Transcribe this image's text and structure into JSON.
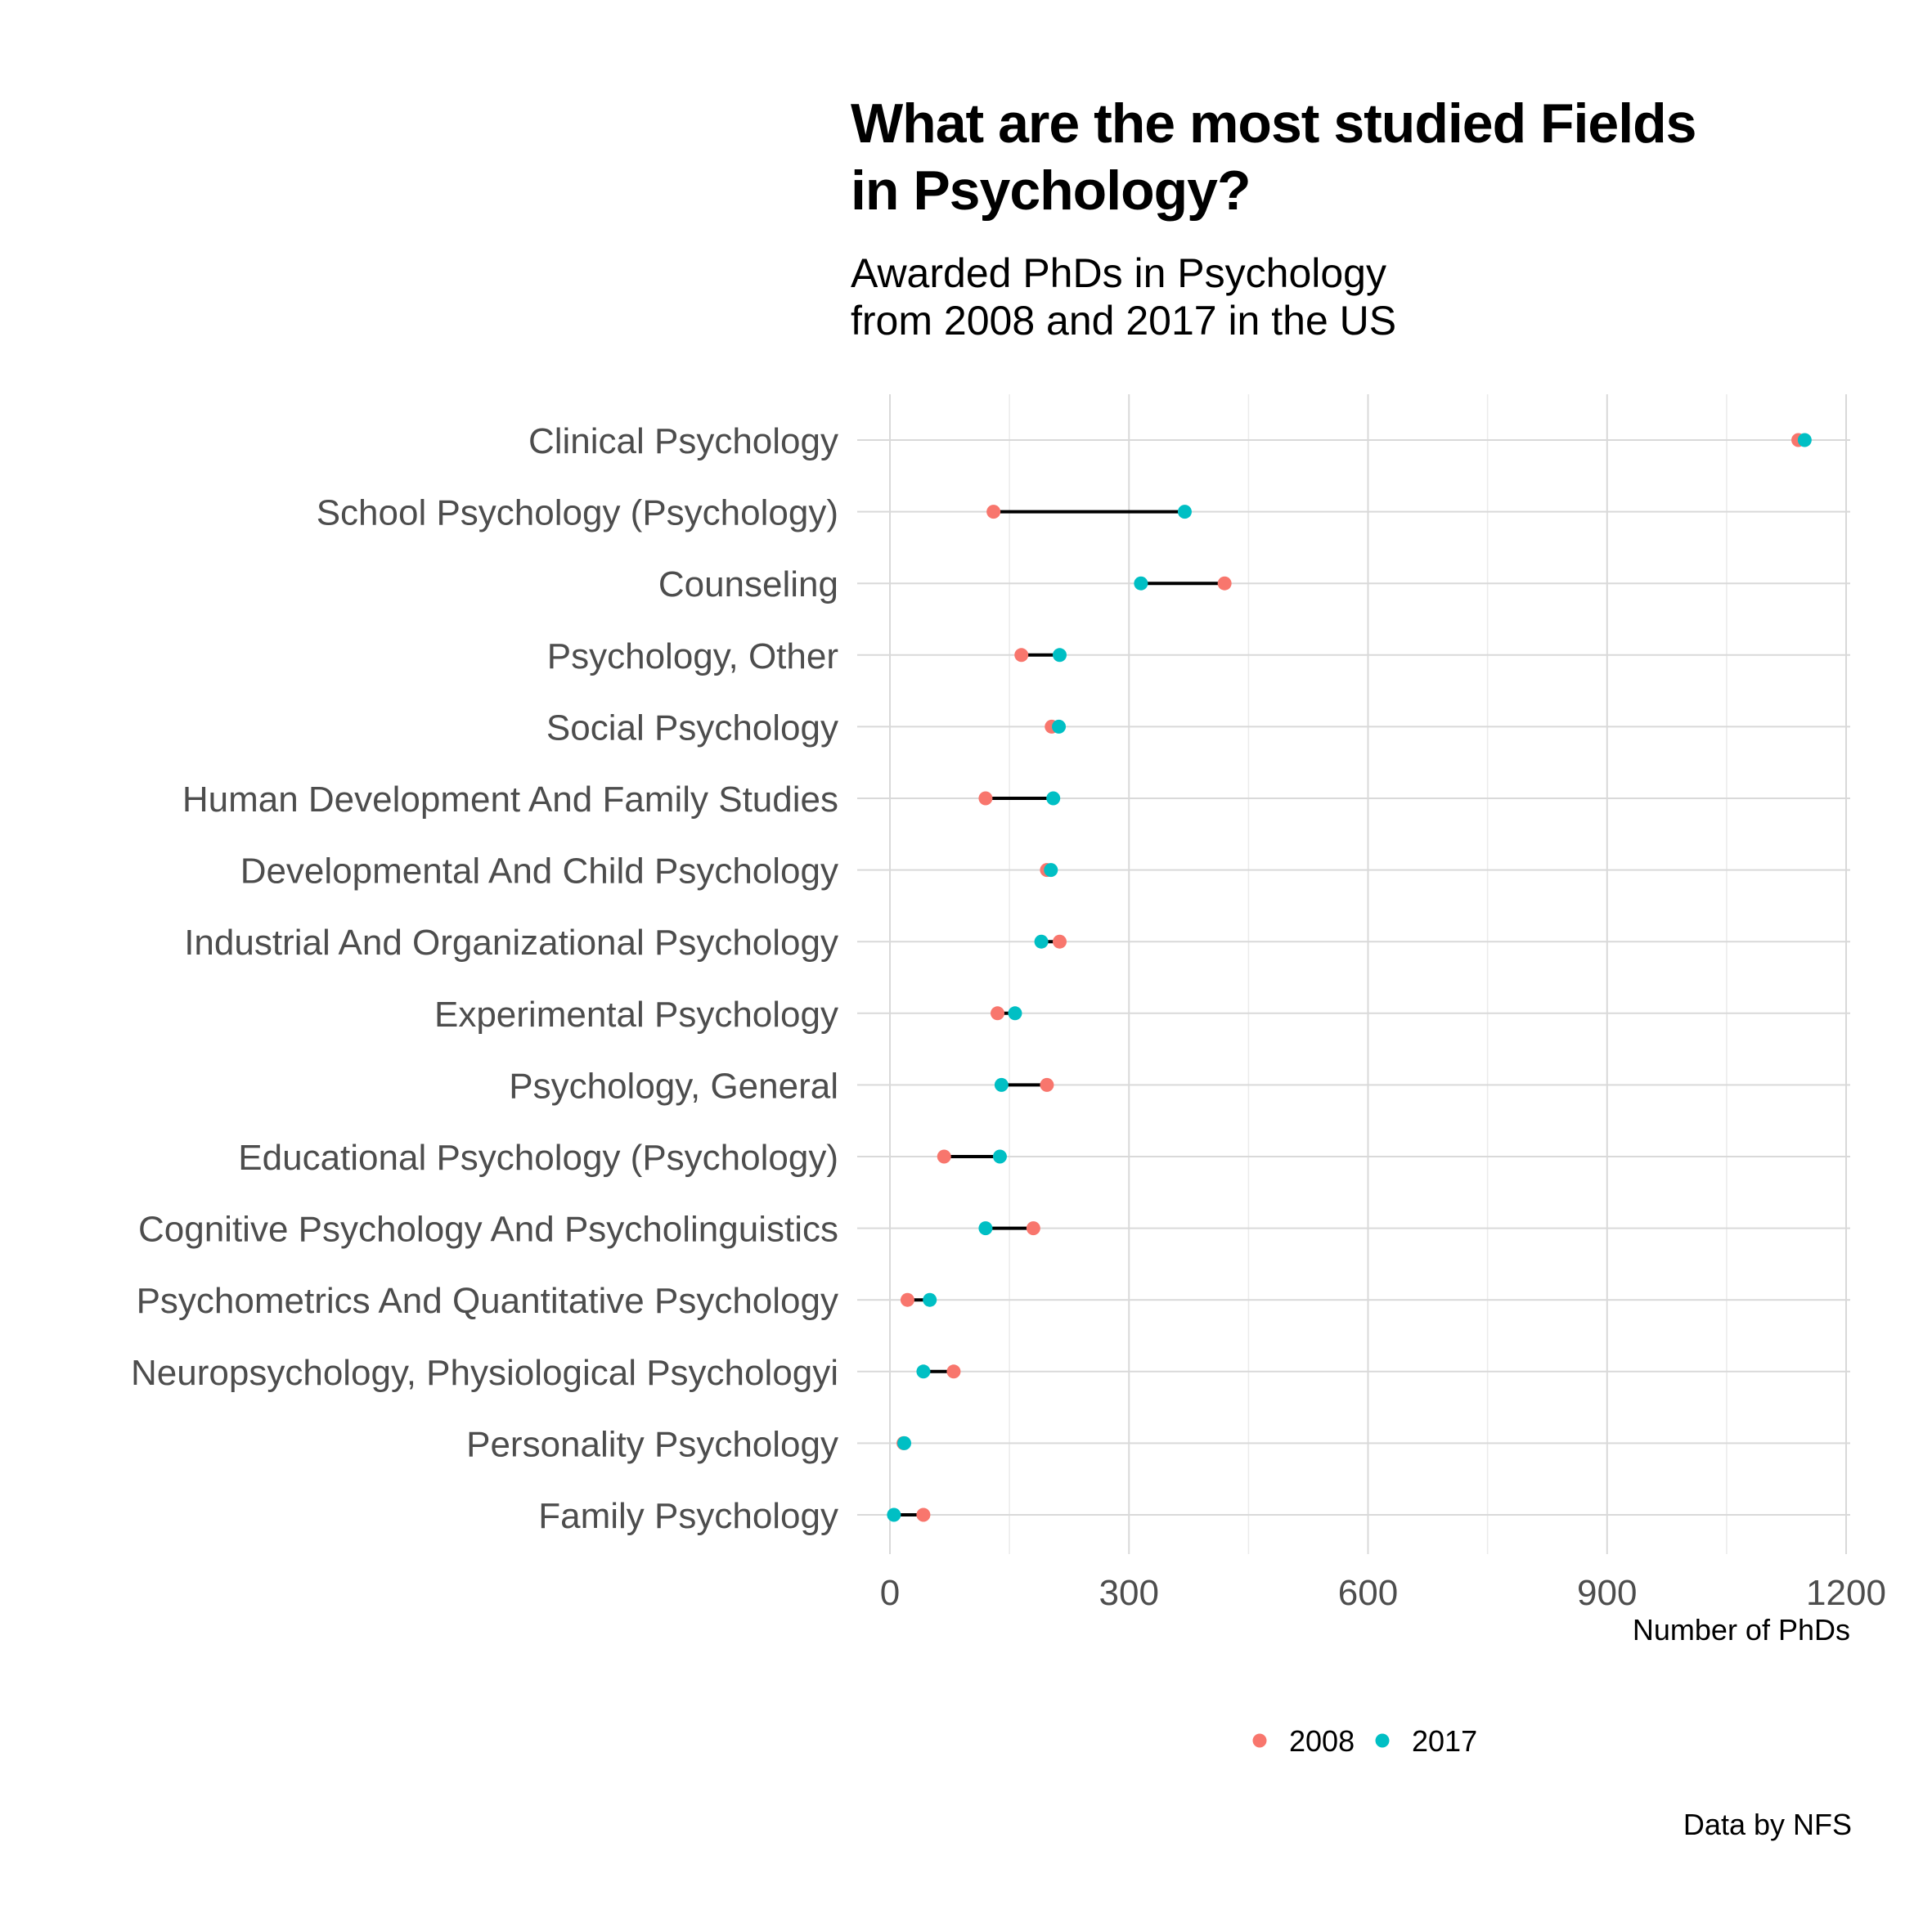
{
  "chart_data": {
    "type": "dumbbell",
    "title": "What are the most studied Fields\nin Psychology?",
    "subtitle": "Awarded PhDs in Psychology\nfrom 2008 and 2017 in the US",
    "xlabel": "Number of PhDs",
    "ylabel": "",
    "xlim": [
      0,
      1200
    ],
    "x_ticks": [
      0,
      300,
      600,
      900,
      1200
    ],
    "caption": "Data by NFS",
    "grid": true,
    "legend_position": "bottom",
    "categories": [
      "Clinical Psychology",
      "School Psychology (Psychology)",
      "Counseling",
      "Psychology, Other",
      "Social Psychology",
      "Human Development And Family Studies",
      "Developmental And Child Psychology",
      "Industrial And Organizational Psychology",
      "Experimental Psychology",
      "Psychology, General",
      "Educational Psychology (Psychology)",
      "Cognitive Psychology And Psycholinguistics",
      "Psychometrics And Quantitative Psychology",
      "Neuropsychology, Physiological Psychologyi",
      "Personality Psychology",
      "Family Psychology"
    ],
    "series": [
      {
        "name": "2008",
        "color": "#F8766D",
        "values": [
          1140,
          130,
          420,
          165,
          203,
          120,
          197,
          213,
          135,
          197,
          68,
          180,
          22,
          80,
          17,
          42
        ]
      },
      {
        "name": "2017",
        "color": "#00BFC4",
        "values": [
          1148,
          370,
          315,
          213,
          212,
          205,
          202,
          190,
          157,
          140,
          138,
          120,
          50,
          42,
          18,
          5
        ]
      }
    ]
  }
}
